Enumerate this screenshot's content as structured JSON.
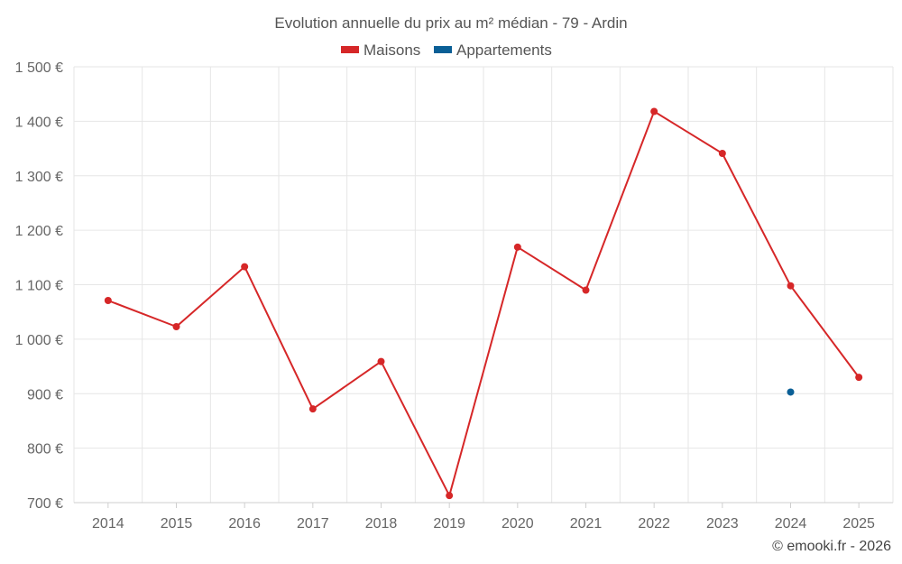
{
  "chart_data": {
    "type": "line",
    "title": "Evolution annuelle du prix au m² médian - 79 - Ardin",
    "categories": [
      "2014",
      "2015",
      "2016",
      "2017",
      "2018",
      "2019",
      "2020",
      "2021",
      "2022",
      "2023",
      "2024",
      "2025"
    ],
    "series": [
      {
        "name": "Maisons",
        "color": "#d62728",
        "values": [
          1071,
          1023,
          1133,
          872,
          959,
          713,
          1169,
          1090,
          1418,
          1341,
          1098,
          930
        ]
      },
      {
        "name": "Appartements",
        "color": "#0a5f96",
        "values": [
          null,
          null,
          null,
          null,
          null,
          null,
          null,
          null,
          null,
          null,
          903,
          null
        ]
      }
    ],
    "ylim": [
      700,
      1500
    ],
    "yticks": [
      700,
      800,
      900,
      1000,
      1100,
      1200,
      1300,
      1400,
      1500
    ],
    "ytick_labels": [
      "700 €",
      "800 €",
      "900 €",
      "1 000 €",
      "1 100 €",
      "1 200 €",
      "1 300 €",
      "1 400 €",
      "1 500 €"
    ],
    "grid": true,
    "legend_position": "top-center"
  },
  "credit": "© emooki.fr - 2026"
}
